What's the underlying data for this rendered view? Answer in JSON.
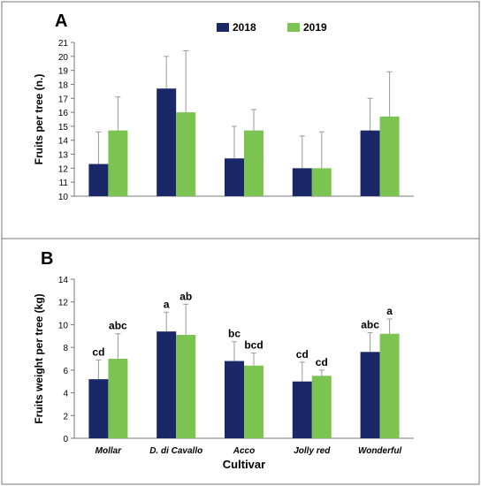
{
  "colors": {
    "y2018": "#1a2868",
    "y2019": "#7cc452",
    "frame": "#777777",
    "text": "#000000",
    "error": "#999999"
  },
  "legend": [
    "2018",
    "2019"
  ],
  "chart_data": [
    {
      "panel_label": "A",
      "type": "bar",
      "ylabel": "Fruits per tree (n.)",
      "xlabel": "",
      "ylim": [
        10,
        21
      ],
      "yticks": [
        10,
        11,
        12,
        13,
        14,
        15,
        16,
        17,
        18,
        19,
        20,
        21
      ],
      "categories": [
        "Mollar",
        "D. di Cavallo",
        "Acco",
        "Jolly red",
        "Wonderful"
      ],
      "show_category_labels": false,
      "legend": "top-center",
      "series": [
        {
          "name": "2018",
          "values": [
            12.3,
            17.7,
            12.7,
            12.0,
            14.7
          ],
          "errors": [
            2.3,
            2.3,
            2.3,
            2.3,
            2.3
          ]
        },
        {
          "name": "2019",
          "values": [
            14.7,
            16.0,
            14.7,
            12.0,
            15.7
          ],
          "errors": [
            2.4,
            4.4,
            1.5,
            2.6,
            3.2
          ]
        }
      ]
    },
    {
      "panel_label": "B",
      "type": "bar",
      "ylabel": "Fruits weight  per tree (kg)",
      "xlabel": "Cultivar",
      "ylim": [
        0,
        14
      ],
      "yticks": [
        0,
        2,
        4,
        6,
        8,
        10,
        12,
        14
      ],
      "categories": [
        "Mollar",
        "D. di Cavallo",
        "Acco",
        "Jolly red",
        "Wonderful"
      ],
      "show_category_labels": true,
      "series": [
        {
          "name": "2018",
          "values": [
            5.2,
            9.4,
            6.8,
            5.0,
            7.6
          ],
          "errors": [
            1.7,
            1.7,
            1.7,
            1.7,
            1.7
          ],
          "letters": [
            "cd",
            "a",
            "bc",
            "cd",
            "abc"
          ]
        },
        {
          "name": "2019",
          "values": [
            7.0,
            9.1,
            6.4,
            5.5,
            9.2
          ],
          "errors": [
            2.2,
            2.7,
            1.1,
            0.5,
            1.3
          ],
          "letters": [
            "abc",
            "ab",
            "bcd",
            "cd",
            "a"
          ]
        }
      ]
    }
  ]
}
